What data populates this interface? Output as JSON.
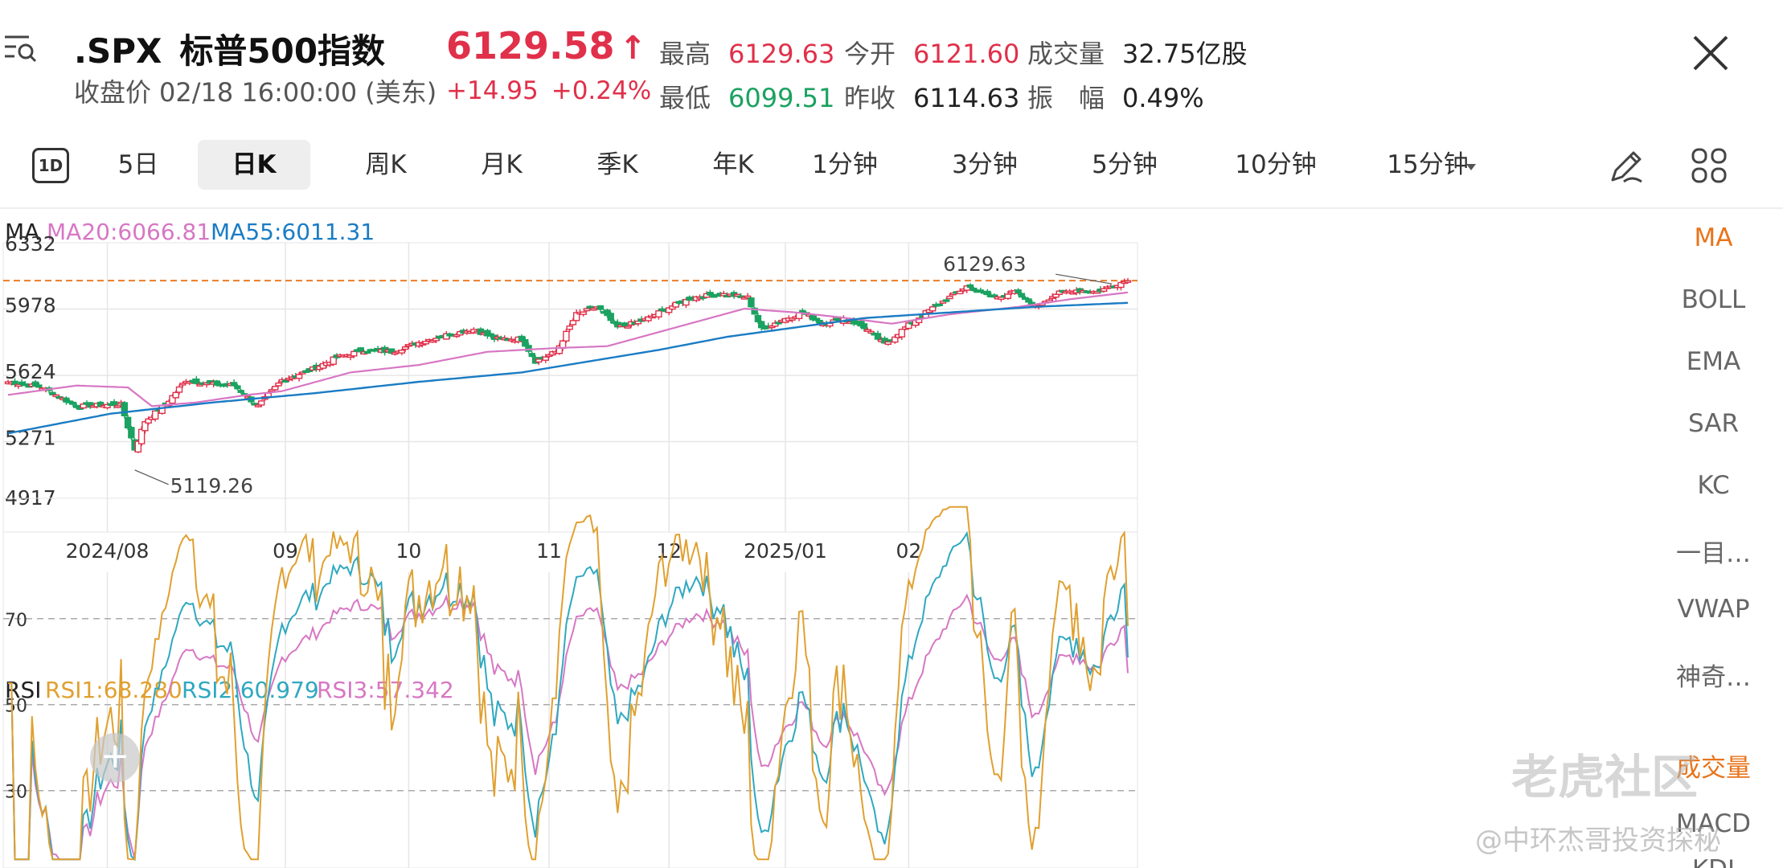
{
  "header": {
    "symbol": ".SPX",
    "name": "标普500指数",
    "close_label": "收盘价",
    "close_time": "02/18 16:00:00 (美东)",
    "price": "6129.58",
    "price_arrow": "↑",
    "change": "+14.95",
    "change_pct": "+0.24%",
    "stats": {
      "high_label": "最高",
      "high": "6129.63",
      "open_label": "今开",
      "open": "6121.60",
      "volume_label": "成交量",
      "volume": "32.75亿股",
      "low_label": "最低",
      "low": "6099.51",
      "prev_close_label": "昨收",
      "prev_close": "6114.63",
      "amplitude_label": "振　幅",
      "amplitude": "0.49%"
    }
  },
  "tabs": {
    "icon_1d": "1D",
    "items": [
      "5日",
      "日K",
      "周K",
      "月K",
      "季K",
      "年K",
      "1分钟",
      "3分钟",
      "5分钟",
      "10分钟",
      "15分钟"
    ],
    "active": "日K"
  },
  "indicators": [
    "MA",
    "BOLL",
    "EMA",
    "SAR",
    "KC",
    "一目…",
    "VWAP",
    "神奇…",
    "成交量",
    "MACD",
    "KDJ"
  ],
  "active_indicator": "MA",
  "watermark": {
    "brand": "老虎社区",
    "author": "@中环杰哥投资探秘"
  },
  "colors": {
    "up": "#e0304a",
    "down": "#1aa260",
    "ma20": "#d777c4",
    "ma55": "#1a7cc4",
    "rsi1": "#e0a030",
    "rsi2": "#2fa8c0",
    "rsi3": "#d777c4",
    "ref_line": "#e8741a"
  },
  "chart_data": [
    {
      "type": "candlestick",
      "legend": {
        "title": "MA",
        "ma20_label": "MA20:6066.81",
        "ma55_label": "MA55:6011.31"
      },
      "y_ticks": [
        "6332",
        "5978",
        "5624",
        "5271",
        "4917"
      ],
      "ylim": [
        4917,
        6332
      ],
      "x_ticks": [
        "2024/08",
        "09",
        "10",
        "11",
        "12",
        "2025/01",
        "02"
      ],
      "max_label": "6129.63",
      "min_label": "5119.26",
      "last_close": 6129.58,
      "close_anchors": [
        [
          0,
          5590
        ],
        [
          10,
          5560
        ],
        [
          20,
          5460
        ],
        [
          33,
          5470
        ],
        [
          37,
          5230
        ],
        [
          40,
          5380
        ],
        [
          46,
          5470
        ],
        [
          52,
          5600
        ],
        [
          58,
          5580
        ],
        [
          66,
          5570
        ],
        [
          73,
          5460
        ],
        [
          80,
          5600
        ],
        [
          88,
          5650
        ],
        [
          96,
          5720
        ],
        [
          104,
          5760
        ],
        [
          112,
          5750
        ],
        [
          120,
          5800
        ],
        [
          128,
          5840
        ],
        [
          136,
          5870
        ],
        [
          142,
          5820
        ],
        [
          150,
          5820
        ],
        [
          154,
          5700
        ],
        [
          160,
          5750
        ],
        [
          166,
          5950
        ],
        [
          172,
          5990
        ],
        [
          178,
          5880
        ],
        [
          186,
          5920
        ],
        [
          192,
          5980
        ],
        [
          200,
          6040
        ],
        [
          208,
          6060
        ],
        [
          216,
          6040
        ],
        [
          220,
          5870
        ],
        [
          226,
          5920
        ],
        [
          232,
          5960
        ],
        [
          238,
          5900
        ],
        [
          244,
          5930
        ],
        [
          250,
          5880
        ],
        [
          256,
          5790
        ],
        [
          262,
          5880
        ],
        [
          268,
          5960
        ],
        [
          274,
          6030
        ],
        [
          280,
          6100
        ],
        [
          288,
          6040
        ],
        [
          294,
          6070
        ],
        [
          300,
          5990
        ],
        [
          306,
          6060
        ],
        [
          312,
          6080
        ],
        [
          318,
          6070
        ],
        [
          324,
          6115
        ],
        [
          327,
          6129.58
        ]
      ],
      "ma20_anchors": [
        [
          0,
          5520
        ],
        [
          20,
          5570
        ],
        [
          35,
          5560
        ],
        [
          42,
          5460
        ],
        [
          55,
          5480
        ],
        [
          70,
          5520
        ],
        [
          80,
          5540
        ],
        [
          100,
          5640
        ],
        [
          120,
          5680
        ],
        [
          140,
          5750
        ],
        [
          160,
          5770
        ],
        [
          175,
          5780
        ],
        [
          195,
          5880
        ],
        [
          215,
          5980
        ],
        [
          230,
          5960
        ],
        [
          245,
          5930
        ],
        [
          258,
          5900
        ],
        [
          275,
          5950
        ],
        [
          295,
          5990
        ],
        [
          310,
          6030
        ],
        [
          327,
          6066.81
        ]
      ],
      "ma55_anchors": [
        [
          0,
          5315
        ],
        [
          30,
          5420
        ],
        [
          60,
          5480
        ],
        [
          90,
          5530
        ],
        [
          120,
          5590
        ],
        [
          150,
          5640
        ],
        [
          170,
          5700
        ],
        [
          190,
          5760
        ],
        [
          210,
          5830
        ],
        [
          230,
          5880
        ],
        [
          250,
          5930
        ],
        [
          275,
          5960
        ],
        [
          300,
          5990
        ],
        [
          327,
          6011.31
        ]
      ]
    },
    {
      "type": "line",
      "legend": {
        "title": "RSI",
        "rsi1_label": "RSI1:68.280",
        "rsi2_label": "RSI2:60.979",
        "rsi3_label": "RSI3:57.342"
      },
      "y_ticks": [
        "70",
        "50",
        "30"
      ],
      "ylim": [
        12,
        98
      ],
      "series_last": {
        "RSI1": 68.28,
        "RSI2": 60.979,
        "RSI3": 57.342
      }
    }
  ]
}
